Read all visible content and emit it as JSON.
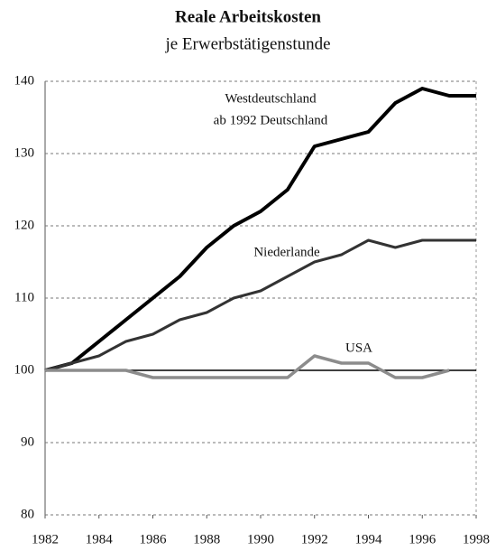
{
  "chart_data": {
    "type": "line",
    "title": "Reale Arbeitskosten",
    "subtitle": "je Erwerbstätigenstunde",
    "x": [
      1982,
      1983,
      1984,
      1985,
      1986,
      1987,
      1988,
      1989,
      1990,
      1991,
      1992,
      1993,
      1994,
      1995,
      1996,
      1997,
      1998
    ],
    "series": [
      {
        "name": "Westdeutschland",
        "color": "#000000",
        "values": [
          100,
          101,
          104,
          107,
          110,
          113,
          117,
          120,
          122,
          125,
          131,
          132,
          133,
          137,
          139,
          138,
          138
        ]
      },
      {
        "name": "Niederlande",
        "color": "#333333",
        "values": [
          100,
          101,
          102,
          104,
          105,
          107,
          108,
          110,
          111,
          113,
          115,
          116,
          118,
          117,
          118,
          118,
          118
        ]
      },
      {
        "name": "USA",
        "color": "#8c8c8c",
        "values": [
          100,
          100,
          100,
          100,
          99,
          99,
          99,
          99,
          99,
          99,
          102,
          101,
          101,
          99,
          99,
          100,
          null
        ]
      }
    ],
    "annotations": [
      "ab 1992 Deutschland"
    ],
    "reference_line": 100,
    "xlim": [
      1982,
      1998
    ],
    "xticks": [
      1982,
      1984,
      1986,
      1988,
      1990,
      1992,
      1994,
      1996,
      1998
    ],
    "ylim": [
      80,
      140
    ],
    "yticks": [
      80,
      90,
      100,
      110,
      120,
      130,
      140
    ],
    "grid": true
  }
}
